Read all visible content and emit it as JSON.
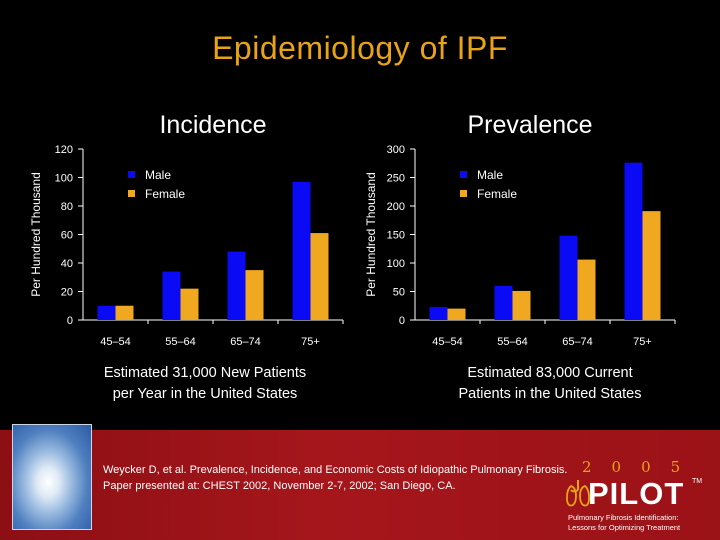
{
  "slide": {
    "title": "Epidemiology of IPF",
    "captions": [
      "Estimated 31,000 New Patients\nper Year in the United States",
      "Estimated 83,000 Current\nPatients in the United States"
    ],
    "citation": "Weycker D, et al. Prevalence, Incidence, and Economic Costs of Idiopathic Pulmonary Fibrosis. Paper presented at: CHEST 2002, November 2-7, 2002; San Diego, CA.",
    "logo": {
      "year": "2005",
      "word": "PILOT",
      "trademark": "TM",
      "tagline_1": "Pulmonary Fibrosis Identification:",
      "tagline_2": "Lessons for Optimizing Treatment"
    }
  },
  "colors": {
    "male": "#0A0AF5",
    "female": "#F0A820",
    "title": "#E8A317",
    "axis": "#FFFFFF",
    "background": "#000000",
    "footer": "#A5161B"
  },
  "icons": [
    "sky-photo",
    "lung-icon"
  ],
  "chart_data": [
    {
      "type": "bar",
      "title": "Incidence",
      "ylabel": "Per Hundred Thousand",
      "xlabel": "",
      "categories": [
        "45–54",
        "55–64",
        "65–74",
        "75+"
      ],
      "ylim": [
        0,
        120
      ],
      "yticks": [
        0,
        20,
        40,
        60,
        80,
        100,
        120
      ],
      "grid": false,
      "legend": "top-left",
      "series": [
        {
          "name": "Male",
          "color": "#0A0AF5",
          "values": [
            10,
            34,
            48,
            97
          ]
        },
        {
          "name": "Female",
          "color": "#F0A820",
          "values": [
            10,
            22,
            35,
            61
          ]
        }
      ]
    },
    {
      "type": "bar",
      "title": "Prevalence",
      "ylabel": "Per Hundred Thousand",
      "xlabel": "",
      "categories": [
        "45–54",
        "55–64",
        "65–74",
        "75+"
      ],
      "ylim": [
        0,
        300
      ],
      "yticks": [
        0,
        50,
        100,
        150,
        200,
        250,
        300
      ],
      "grid": false,
      "legend": "top-left",
      "series": [
        {
          "name": "Male",
          "color": "#0A0AF5",
          "values": [
            23,
            60,
            148,
            276
          ]
        },
        {
          "name": "Female",
          "color": "#F0A820",
          "values": [
            20,
            51,
            106,
            191
          ]
        }
      ]
    }
  ]
}
